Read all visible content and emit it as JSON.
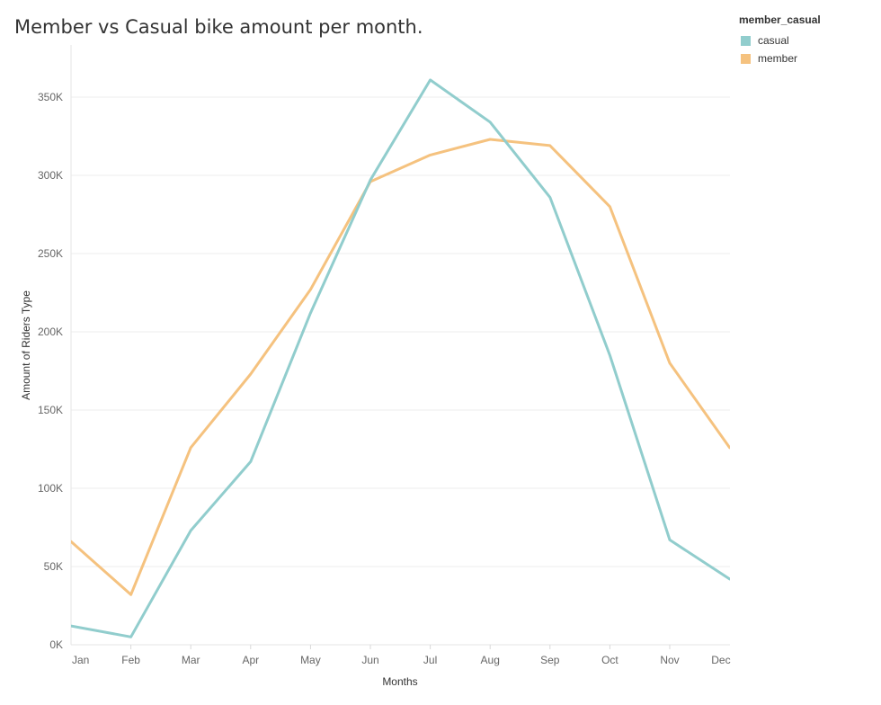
{
  "chart_data": {
    "type": "line",
    "title": "Member vs Casual bike amount per month.",
    "xlabel": "Months",
    "ylabel": "Amount of Riders Type",
    "categories": [
      "Jan",
      "Feb",
      "Mar",
      "Apr",
      "May",
      "Jun",
      "Jul",
      "Aug",
      "Sep",
      "Oct",
      "Nov",
      "Dec"
    ],
    "ylim": [
      0,
      380000
    ],
    "yticks": [
      0,
      50000,
      100000,
      150000,
      200000,
      250000,
      300000,
      350000
    ],
    "ytick_labels": [
      "0K",
      "50K",
      "100K",
      "150K",
      "200K",
      "250K",
      "300K",
      "350K"
    ],
    "legend_title": "member_casual",
    "series": [
      {
        "name": "casual",
        "color": "#91cdcd",
        "values": [
          12000,
          5000,
          73000,
          117000,
          212000,
          297000,
          361000,
          334000,
          286000,
          185000,
          67000,
          42000
        ]
      },
      {
        "name": "member",
        "color": "#f5c27f",
        "values": [
          66000,
          32000,
          126000,
          173000,
          227000,
          296000,
          313000,
          323000,
          319000,
          280000,
          180000,
          126000
        ]
      }
    ]
  }
}
